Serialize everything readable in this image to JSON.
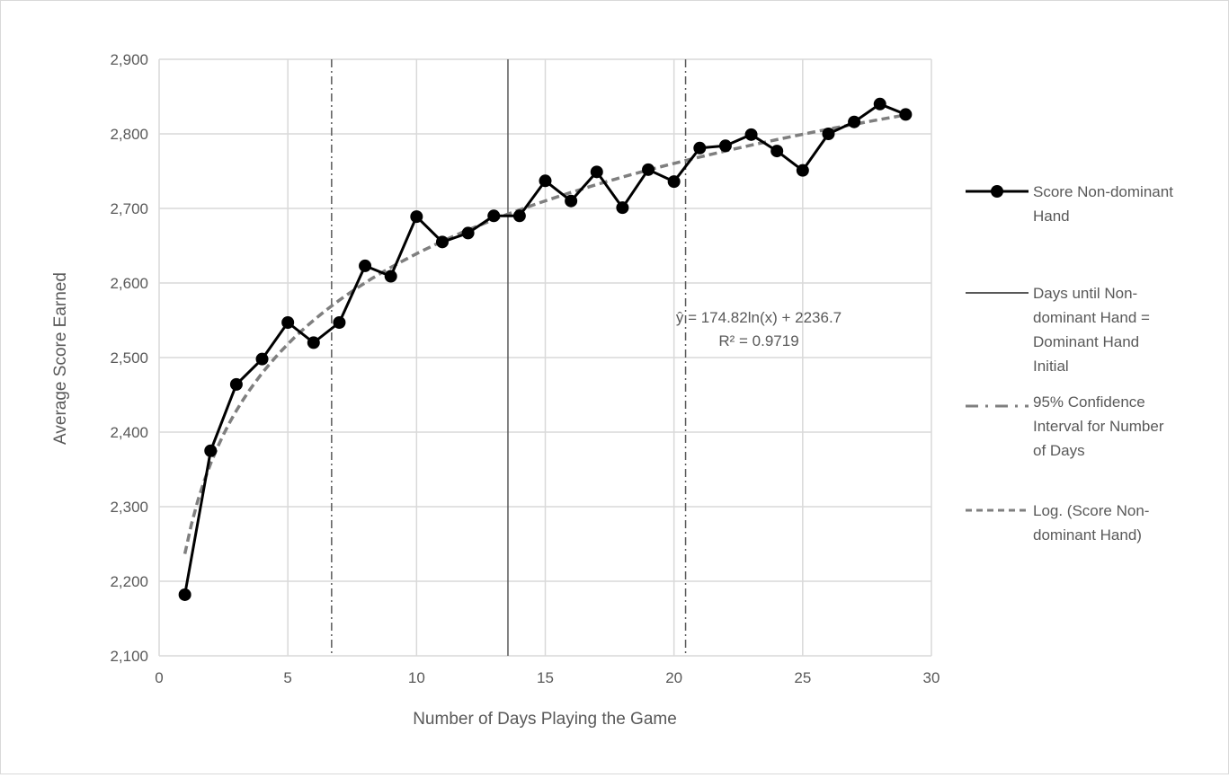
{
  "chart_data": {
    "type": "line",
    "title": "",
    "xlabel": "Number of Days Playing the Game",
    "ylabel": "Average Score Earned",
    "xlim": [
      0,
      30
    ],
    "ylim": [
      2100,
      2900
    ],
    "x_ticks": [
      0,
      5,
      10,
      15,
      20,
      25,
      30
    ],
    "x_tick_labels": [
      "0",
      "5",
      "10",
      "15",
      "20",
      "25",
      "30"
    ],
    "y_ticks": [
      2100,
      2200,
      2300,
      2400,
      2500,
      2600,
      2700,
      2800,
      2900
    ],
    "y_tick_labels": [
      "2,100",
      "2,200",
      "2,300",
      "2,400",
      "2,500",
      "2,600",
      "2,700",
      "2,800",
      "2,900"
    ],
    "grid": true,
    "legend_position": "right",
    "series": [
      {
        "name": "Score Non-dominant Hand",
        "kind": "line-markers",
        "color": "#000000",
        "x": [
          1,
          2,
          3,
          4,
          5,
          6,
          7,
          8,
          9,
          10,
          11,
          12,
          13,
          14,
          15,
          16,
          17,
          18,
          19,
          20,
          21,
          22,
          23,
          24,
          25,
          26,
          27,
          28,
          29
        ],
        "y": [
          2182,
          2375,
          2464,
          2498,
          2547,
          2520,
          2547,
          2623,
          2609,
          2689,
          2655,
          2667,
          2690,
          2690,
          2737,
          2710,
          2749,
          2701,
          2752,
          2736,
          2781,
          2784,
          2799,
          2777,
          2751,
          2800,
          2816,
          2840,
          2826
        ]
      },
      {
        "name": "Days until Non-dominant Hand = Dominant Hand Initial",
        "kind": "vertical-line",
        "color": "#595959",
        "x": 13.55
      },
      {
        "name": "95% Confidence Interval for Number of Days",
        "kind": "vertical-lines-dashdot",
        "color": "#595959",
        "x": [
          6.7,
          20.45
        ]
      },
      {
        "name": "Log. (Score Non-dominant Hand)",
        "kind": "trendline-log",
        "color": "#7f7f7f",
        "coef_a": 174.82,
        "coef_b": 2236.7,
        "x_range": [
          1,
          29
        ]
      }
    ],
    "annotations": [
      {
        "text": "ŷ = 174.82ln(x) + 2236.7"
      },
      {
        "text": "R² = 0.9719"
      }
    ]
  },
  "legend": [
    {
      "lines": [
        "Score Non-dominant",
        "Hand"
      ]
    },
    {
      "lines": [
        "Days until Non-",
        "dominant Hand =",
        "Dominant Hand",
        "Initial"
      ]
    },
    {
      "lines": [
        "95% Confidence",
        "Interval for Number",
        "of Days"
      ]
    },
    {
      "lines": [
        "Log. (Score Non-",
        "dominant Hand)"
      ]
    }
  ]
}
